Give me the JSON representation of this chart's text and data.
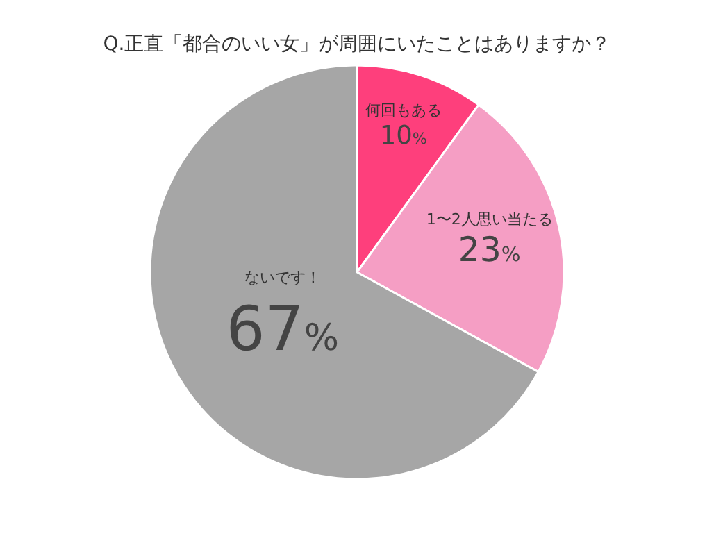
{
  "chart_data": {
    "type": "pie",
    "title": "Q.正直「都合のいい女」が周囲にいたことはありますか？",
    "categories": [
      "何回もある",
      "1〜2人思い当たる",
      "ないです！"
    ],
    "values": [
      10,
      23,
      67
    ],
    "colors": [
      "#fe3f7c",
      "#f59ec4",
      "#a6a6a6"
    ],
    "value_labels": [
      "10%",
      "23%",
      "67%"
    ]
  }
}
